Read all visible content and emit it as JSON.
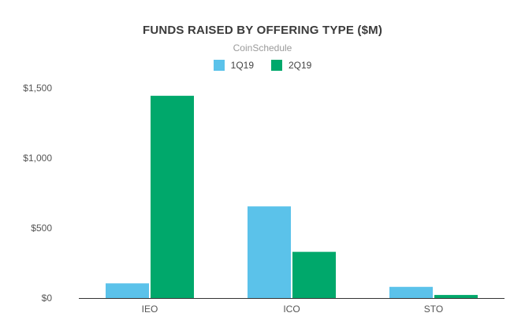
{
  "chart_data": {
    "type": "bar",
    "title": "FUNDS RAISED BY OFFERING TYPE ($M)",
    "subtitle": "CoinSchedule",
    "categories": [
      "IEO",
      "ICO",
      "STO"
    ],
    "series": [
      {
        "name": "1Q19",
        "values": [
          105,
          655,
          80
        ],
        "color": "#5bc2ea"
      },
      {
        "name": "2Q19",
        "values": [
          1445,
          330,
          22
        ],
        "color": "#00a86b"
      }
    ],
    "ylim": [
      0,
      1500
    ],
    "yticks": [
      {
        "value": 0,
        "label": "$0"
      },
      {
        "value": 500,
        "label": "$500"
      },
      {
        "value": 1000,
        "label": "$1,000"
      },
      {
        "value": 1500,
        "label": "$1,500"
      }
    ],
    "grid": false,
    "legend_position": "top"
  }
}
